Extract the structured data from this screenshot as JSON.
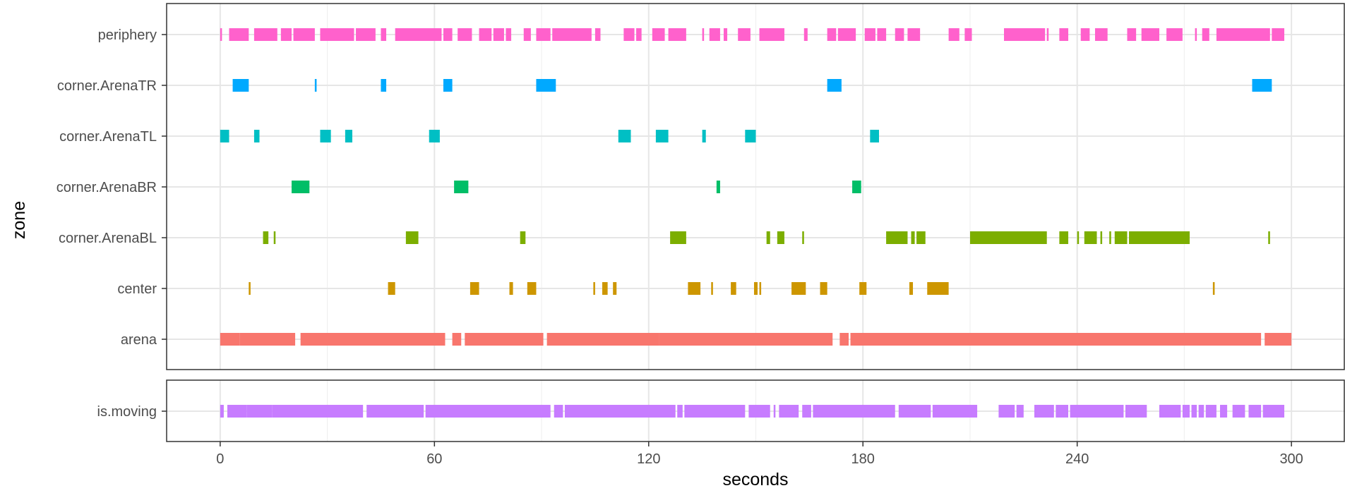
{
  "chart_data": [
    {
      "type": "timeline",
      "panel": "zones",
      "xlabel": "seconds",
      "ylabel": "zone",
      "xlim": [
        -15,
        315
      ],
      "x_ticks": [
        0,
        60,
        120,
        180,
        240,
        300
      ],
      "grid": true,
      "legend": "none",
      "series": [
        {
          "category": "periphery",
          "color": "#FF61CC",
          "intervals": [
            [
              0,
              0.5
            ],
            [
              2.5,
              8
            ],
            [
              9.5,
              16
            ],
            [
              17,
              20
            ],
            [
              20.5,
              26.5
            ],
            [
              28,
              37.5
            ],
            [
              38,
              43.5
            ],
            [
              45,
              46.5
            ],
            [
              49,
              62
            ],
            [
              62.5,
              65
            ],
            [
              66.5,
              70.5
            ],
            [
              72.5,
              76
            ],
            [
              76.5,
              79.5
            ],
            [
              80,
              81.5
            ],
            [
              85,
              87
            ],
            [
              88.5,
              92.5
            ],
            [
              93,
              104
            ],
            [
              105,
              106.5
            ],
            [
              113,
              116
            ],
            [
              116.5,
              118
            ],
            [
              121,
              124.5
            ],
            [
              125.5,
              130.5
            ],
            [
              135,
              135.5
            ],
            [
              137,
              140
            ],
            [
              141,
              142
            ],
            [
              145,
              148.5
            ],
            [
              151,
              158
            ],
            [
              163.5,
              164.5
            ],
            [
              170,
              172.5
            ],
            [
              173,
              178
            ],
            [
              180.5,
              183.5
            ],
            [
              184,
              186.5
            ],
            [
              189,
              191.5
            ],
            [
              192.5,
              196
            ],
            [
              204,
              207
            ],
            [
              208.5,
              210.5
            ],
            [
              219.5,
              231
            ],
            [
              231.5,
              232
            ],
            [
              235,
              237.5
            ],
            [
              241,
              243.5
            ],
            [
              245,
              248.5
            ],
            [
              254,
              256.5
            ],
            [
              258,
              263
            ],
            [
              265,
              269.5
            ],
            [
              273,
              273.5
            ],
            [
              275,
              277
            ],
            [
              279,
              294
            ],
            [
              294.5,
              298
            ]
          ]
        },
        {
          "category": "corner.ArenaTR",
          "color": "#00A9FF",
          "intervals": [
            [
              3.5,
              8
            ],
            [
              26.5,
              27
            ],
            [
              45,
              46.5
            ],
            [
              62.5,
              65
            ],
            [
              88.5,
              94
            ],
            [
              170,
              174
            ],
            [
              289,
              294.5
            ]
          ]
        },
        {
          "category": "corner.ArenaTL",
          "color": "#00BFC4",
          "intervals": [
            [
              0,
              2.5
            ],
            [
              9.5,
              11
            ],
            [
              28,
              31
            ],
            [
              35,
              37
            ],
            [
              58.5,
              61.5
            ],
            [
              111.5,
              115
            ],
            [
              122,
              125.5
            ],
            [
              135,
              136
            ],
            [
              147,
              150
            ],
            [
              182,
              184.5
            ]
          ]
        },
        {
          "category": "corner.ArenaBR",
          "color": "#00BE67",
          "intervals": [
            [
              20,
              25
            ],
            [
              65.5,
              69.5
            ],
            [
              139,
              140
            ],
            [
              177,
              179.5
            ]
          ]
        },
        {
          "category": "corner.ArenaBL",
          "color": "#7CAE00",
          "intervals": [
            [
              12,
              13.5
            ],
            [
              15,
              15.5
            ],
            [
              52,
              55.5
            ],
            [
              84,
              85.5
            ],
            [
              126,
              130.5
            ],
            [
              153,
              154
            ],
            [
              156,
              158
            ],
            [
              163,
              163.5
            ],
            [
              186.5,
              192.5
            ],
            [
              193.5,
              194.5
            ],
            [
              195,
              197.5
            ],
            [
              210,
              231.5
            ],
            [
              235,
              237.5
            ],
            [
              240,
              240.5
            ],
            [
              242,
              245.5
            ],
            [
              246.5,
              247
            ],
            [
              249,
              249.5
            ],
            [
              250.5,
              254
            ],
            [
              254.5,
              271.5
            ],
            [
              293.5,
              294
            ]
          ]
        },
        {
          "category": "center",
          "color": "#CD9600",
          "intervals": [
            [
              8,
              8.5
            ],
            [
              47,
              49
            ],
            [
              70,
              72.5
            ],
            [
              81,
              82
            ],
            [
              86,
              88.5
            ],
            [
              104.5,
              105
            ],
            [
              107,
              108.5
            ],
            [
              110,
              111
            ],
            [
              131,
              134.5
            ],
            [
              137.5,
              138
            ],
            [
              143,
              144.5
            ],
            [
              149.5,
              150.5
            ],
            [
              151,
              151.5
            ],
            [
              160,
              164
            ],
            [
              168,
              170
            ],
            [
              179,
              181
            ],
            [
              193,
              194
            ],
            [
              198,
              204
            ],
            [
              278,
              278.5
            ]
          ]
        },
        {
          "category": "arena",
          "color": "#F8766D",
          "intervals": [
            [
              0,
              5.5
            ],
            [
              5.5,
              21
            ],
            [
              22.5,
              63
            ],
            [
              65,
              67.5
            ],
            [
              68.5,
              90.5
            ],
            [
              91.5,
              123
            ],
            [
              123,
              171.5
            ],
            [
              173.5,
              176
            ],
            [
              176.5,
              291.5
            ],
            [
              292.5,
              300
            ]
          ]
        }
      ]
    },
    {
      "type": "timeline",
      "panel": "is.moving",
      "xlim": [
        -15,
        315
      ],
      "x_ticks": [
        0,
        60,
        120,
        180,
        240,
        300
      ],
      "grid": true,
      "legend": "none",
      "series": [
        {
          "category": "is.moving",
          "color": "#C77CFF",
          "intervals": [
            [
              0,
              1
            ],
            [
              2,
              7.5
            ],
            [
              7.5,
              14.5
            ],
            [
              14.5,
              40
            ],
            [
              41,
              57
            ],
            [
              57.5,
              92.5
            ],
            [
              93.5,
              96
            ],
            [
              96.5,
              127.5
            ],
            [
              128,
              129.5
            ],
            [
              130,
              147
            ],
            [
              148,
              154
            ],
            [
              155,
              155.5
            ],
            [
              156.5,
              162
            ],
            [
              163,
              165.5
            ],
            [
              166,
              189
            ],
            [
              190,
              199
            ],
            [
              199.5,
              212
            ],
            [
              218,
              222.5
            ],
            [
              223,
              225
            ],
            [
              228,
              233.5
            ],
            [
              234,
              237.5
            ],
            [
              238,
              253
            ],
            [
              253.5,
              259.5
            ],
            [
              263,
              269
            ],
            [
              269.5,
              271.5
            ],
            [
              272,
              273.5
            ],
            [
              274,
              275.5
            ],
            [
              276,
              279
            ],
            [
              280,
              282
            ],
            [
              283.5,
              287
            ],
            [
              288,
              291.5
            ],
            [
              292,
              298
            ]
          ]
        }
      ]
    }
  ]
}
